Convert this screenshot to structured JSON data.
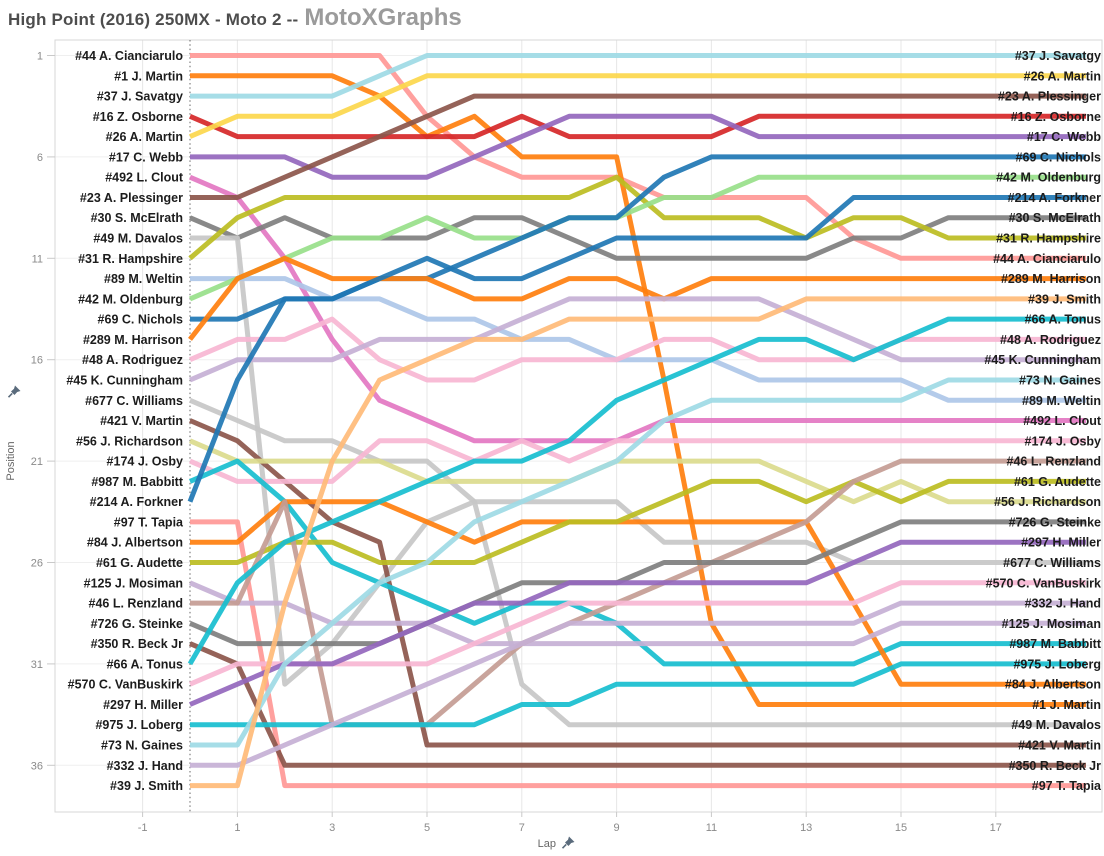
{
  "title": {
    "race": "High Point (2016) 250MX - Moto 2 --",
    "brand": "MotoXGraphs"
  },
  "axes": {
    "x_label": "Lap",
    "y_label": "Position",
    "x_ticks": [
      -1,
      1,
      3,
      5,
      7,
      9,
      11,
      13,
      15,
      17
    ],
    "y_ticks": [
      1,
      6,
      11,
      16,
      21,
      26,
      31,
      36
    ]
  },
  "chart_data": {
    "type": "line",
    "variant": "bump-chart",
    "title": "High Point (2016) 250MX - Moto 2",
    "xlabel": "Lap",
    "ylabel": "Position",
    "x_range": [
      0,
      17
    ],
    "y_range": [
      1,
      37
    ],
    "grid": "light",
    "laps": [
      0,
      1,
      2,
      3,
      4,
      5,
      6,
      7,
      8,
      9,
      10,
      11,
      12,
      13,
      14,
      15,
      16,
      17
    ],
    "series": [
      {
        "num": "#44",
        "name": "A. Cianciarulo",
        "label": "#44 A. Cianciarulo",
        "color": "#ff9896",
        "start": 1,
        "finish": 11,
        "positions": [
          1,
          1,
          1,
          1,
          1,
          4,
          6,
          7,
          7,
          7,
          8,
          8,
          8,
          8,
          10,
          11,
          11,
          11
        ]
      },
      {
        "num": "#1",
        "name": "J. Martin",
        "label": "#1 J. Martin",
        "color": "#ff7f0e",
        "start": 2,
        "finish": 33,
        "positions": [
          2,
          2,
          2,
          2,
          3,
          5,
          4,
          6,
          6,
          6,
          17,
          29,
          33,
          33,
          33,
          33,
          33,
          33
        ]
      },
      {
        "num": "#37",
        "name": "J. Savatgy",
        "label": "#37 J. Savatgy",
        "color": "#9edae5",
        "start": 3,
        "finish": 1,
        "positions": [
          3,
          3,
          3,
          3,
          2,
          1,
          1,
          1,
          1,
          1,
          1,
          1,
          1,
          1,
          1,
          1,
          1,
          1
        ]
      },
      {
        "num": "#16",
        "name": "Z. Osborne",
        "label": "#16 Z. Osborne",
        "color": "#d62728",
        "start": 4,
        "finish": 4,
        "positions": [
          4,
          5,
          5,
          5,
          5,
          5,
          5,
          4,
          5,
          5,
          5,
          5,
          4,
          4,
          4,
          4,
          4,
          4
        ]
      },
      {
        "num": "#26",
        "name": "A. Martin",
        "label": "#26 A. Martin",
        "color": "#fcd74c",
        "start": 5,
        "finish": 2,
        "positions": [
          5,
          4,
          4,
          4,
          3,
          2,
          2,
          2,
          2,
          2,
          2,
          2,
          2,
          2,
          2,
          2,
          2,
          2
        ]
      },
      {
        "num": "#17",
        "name": "C. Webb",
        "label": "#17 C. Webb",
        "color": "#9467bd",
        "start": 6,
        "finish": 5,
        "positions": [
          6,
          6,
          6,
          7,
          7,
          7,
          6,
          5,
          4,
          4,
          4,
          4,
          5,
          5,
          5,
          5,
          5,
          5
        ]
      },
      {
        "num": "#492",
        "name": "L. Clout",
        "label": "#492 L. Clout",
        "color": "#e377c2",
        "start": 7,
        "finish": 19,
        "positions": [
          7,
          8,
          11,
          15,
          18,
          19,
          20,
          20,
          20,
          20,
          19,
          19,
          19,
          19,
          19,
          19,
          19,
          19
        ]
      },
      {
        "num": "#23",
        "name": "A. Plessinger",
        "label": "#23 A. Plessinger",
        "color": "#8c564b",
        "start": 8,
        "finish": 3,
        "positions": [
          8,
          8,
          7,
          6,
          5,
          4,
          3,
          3,
          3,
          3,
          3,
          3,
          3,
          3,
          3,
          3,
          3,
          3
        ]
      },
      {
        "num": "#30",
        "name": "S. McElrath",
        "label": "#30 S. McElrath",
        "color": "#7f7f7f",
        "start": 9,
        "finish": 9,
        "positions": [
          9,
          10,
          9,
          10,
          10,
          10,
          9,
          9,
          10,
          11,
          11,
          11,
          11,
          11,
          10,
          10,
          9,
          9
        ]
      },
      {
        "num": "#49",
        "name": "M. Davalos",
        "label": "#49 M. Davalos",
        "color": "#c7c7c7",
        "start": 10,
        "finish": 34,
        "positions": [
          10,
          10,
          32,
          30,
          27,
          24,
          23,
          32,
          34,
          34,
          34,
          34,
          34,
          34,
          34,
          34,
          34,
          34
        ]
      },
      {
        "num": "#31",
        "name": "R. Hampshire",
        "label": "#31 R. Hampshire",
        "color": "#bcbd22",
        "start": 11,
        "finish": 10,
        "positions": [
          11,
          9,
          8,
          8,
          8,
          8,
          8,
          8,
          8,
          7,
          9,
          9,
          9,
          10,
          9,
          9,
          10,
          10
        ]
      },
      {
        "num": "#89",
        "name": "M. Weltin",
        "label": "#89 M. Weltin",
        "color": "#aec7e8",
        "start": 12,
        "finish": 18,
        "positions": [
          12,
          12,
          12,
          13,
          13,
          14,
          14,
          15,
          15,
          16,
          16,
          16,
          17,
          17,
          17,
          17,
          18,
          18
        ]
      },
      {
        "num": "#42",
        "name": "M. Oldenburg",
        "label": "#42 M. Oldenburg",
        "color": "#98df8a",
        "start": 13,
        "finish": 7,
        "positions": [
          13,
          12,
          11,
          10,
          10,
          9,
          10,
          10,
          9,
          9,
          8,
          8,
          7,
          7,
          7,
          7,
          7,
          7
        ]
      },
      {
        "num": "#69",
        "name": "C. Nichols",
        "label": "#69 C. Nichols",
        "color": "#1f77b4",
        "start": 14,
        "finish": 6,
        "positions": [
          14,
          14,
          13,
          13,
          12,
          12,
          11,
          10,
          9,
          9,
          7,
          6,
          6,
          6,
          6,
          6,
          6,
          6
        ]
      },
      {
        "num": "#289",
        "name": "M. Harrison",
        "label": "#289 M. Harrison",
        "color": "#ff7f0e",
        "start": 15,
        "finish": 12,
        "positions": [
          15,
          12,
          11,
          12,
          12,
          12,
          13,
          13,
          12,
          12,
          13,
          12,
          12,
          12,
          12,
          12,
          12,
          12
        ]
      },
      {
        "num": "#48",
        "name": "A. Rodriguez",
        "label": "#48 A. Rodriguez",
        "color": "#f7b6d2",
        "start": 16,
        "finish": 15,
        "positions": [
          16,
          15,
          15,
          14,
          16,
          17,
          17,
          16,
          16,
          16,
          15,
          15,
          16,
          16,
          16,
          15,
          15,
          15
        ]
      },
      {
        "num": "#45",
        "name": "K. Cunningham",
        "label": "#45 K. Cunningham",
        "color": "#c5b0d5",
        "start": 17,
        "finish": 16,
        "positions": [
          17,
          16,
          16,
          16,
          15,
          15,
          15,
          14,
          13,
          13,
          13,
          13,
          13,
          14,
          15,
          16,
          16,
          16
        ]
      },
      {
        "num": "#677",
        "name": "C. Williams",
        "label": "#677 C. Williams",
        "color": "#c7c7c7",
        "start": 18,
        "finish": 26,
        "positions": [
          18,
          19,
          20,
          20,
          21,
          21,
          23,
          23,
          23,
          23,
          25,
          25,
          25,
          25,
          26,
          26,
          26,
          26
        ]
      },
      {
        "num": "#421",
        "name": "V. Martin",
        "label": "#421 V. Martin",
        "color": "#8c564b",
        "start": 19,
        "finish": 35,
        "positions": [
          19,
          20,
          22,
          24,
          25,
          35,
          35,
          35,
          35,
          35,
          35,
          35,
          35,
          35,
          35,
          35,
          35,
          35
        ]
      },
      {
        "num": "#56",
        "name": "J. Richardson",
        "label": "#56 J. Richardson",
        "color": "#dbdb8d",
        "start": 20,
        "finish": 23,
        "positions": [
          20,
          21,
          21,
          21,
          21,
          22,
          22,
          22,
          22,
          21,
          21,
          21,
          21,
          22,
          23,
          22,
          23,
          23
        ]
      },
      {
        "num": "#174",
        "name": "J. Osby",
        "label": "#174 J. Osby",
        "color": "#f7b6d2",
        "start": 21,
        "finish": 20,
        "positions": [
          21,
          22,
          22,
          22,
          20,
          20,
          21,
          20,
          21,
          20,
          20,
          20,
          20,
          20,
          20,
          20,
          20,
          20
        ]
      },
      {
        "num": "#987",
        "name": "M. Babbitt",
        "label": "#987 M. Babbitt",
        "color": "#17becf",
        "start": 22,
        "finish": 30,
        "positions": [
          22,
          21,
          23,
          26,
          27,
          28,
          29,
          28,
          28,
          29,
          31,
          31,
          31,
          31,
          31,
          30,
          30,
          30
        ]
      },
      {
        "num": "#214",
        "name": "A. Forkner",
        "label": "#214 A. Forkner",
        "color": "#1f77b4",
        "start": 23,
        "finish": 8,
        "positions": [
          23,
          17,
          13,
          13,
          12,
          11,
          12,
          12,
          11,
          10,
          10,
          10,
          10,
          10,
          8,
          8,
          8,
          8
        ]
      },
      {
        "num": "#97",
        "name": "T. Tapia",
        "label": "#97 T. Tapia",
        "color": "#ff9896",
        "start": 24,
        "finish": 37,
        "positions": [
          24,
          24,
          37,
          37,
          37,
          37,
          37,
          37,
          37,
          37,
          37,
          37,
          37,
          37,
          37,
          37,
          37,
          37
        ]
      },
      {
        "num": "#84",
        "name": "J. Albertson",
        "label": "#84 J. Albertson",
        "color": "#ff7f0e",
        "start": 25,
        "finish": 32,
        "positions": [
          25,
          25,
          23,
          23,
          23,
          24,
          25,
          24,
          24,
          24,
          24,
          24,
          24,
          24,
          28,
          32,
          32,
          32
        ]
      },
      {
        "num": "#61",
        "name": "G. Audette",
        "label": "#61 G. Audette",
        "color": "#bcbd22",
        "start": 26,
        "finish": 22,
        "positions": [
          26,
          26,
          25,
          25,
          26,
          26,
          26,
          25,
          24,
          24,
          23,
          22,
          22,
          23,
          22,
          23,
          22,
          22
        ]
      },
      {
        "num": "#125",
        "name": "J. Mosiman",
        "label": "#125 J. Mosiman",
        "color": "#c5b0d5",
        "start": 27,
        "finish": 29,
        "positions": [
          27,
          28,
          28,
          29,
          29,
          29,
          30,
          30,
          30,
          30,
          30,
          30,
          30,
          30,
          30,
          29,
          29,
          29
        ]
      },
      {
        "num": "#46",
        "name": "L. Renzland",
        "label": "#46 L. Renzland",
        "color": "#c49c94",
        "start": 28,
        "finish": 21,
        "positions": [
          28,
          28,
          23,
          34,
          34,
          34,
          32,
          30,
          29,
          28,
          27,
          26,
          25,
          24,
          22,
          21,
          21,
          21
        ]
      },
      {
        "num": "#726",
        "name": "G. Steinke",
        "label": "#726 G. Steinke",
        "color": "#7f7f7f",
        "start": 29,
        "finish": 24,
        "positions": [
          29,
          30,
          30,
          30,
          30,
          29,
          28,
          27,
          27,
          27,
          26,
          26,
          26,
          26,
          25,
          24,
          24,
          24
        ]
      },
      {
        "num": "#350",
        "name": "R. Beck Jr",
        "label": "#350 R. Beck Jr",
        "color": "#8c564b",
        "start": 30,
        "finish": 36,
        "positions": [
          30,
          31,
          36,
          36,
          36,
          36,
          36,
          36,
          36,
          36,
          36,
          36,
          36,
          36,
          36,
          36,
          36,
          36
        ]
      },
      {
        "num": "#66",
        "name": "A. Tonus",
        "label": "#66 A. Tonus",
        "color": "#17becf",
        "start": 31,
        "finish": 14,
        "positions": [
          31,
          27,
          25,
          24,
          23,
          22,
          21,
          21,
          20,
          18,
          17,
          16,
          15,
          15,
          16,
          15,
          14,
          14
        ]
      },
      {
        "num": "#570",
        "name": "C. VanBuskirk",
        "label": "#570 C. VanBuskirk",
        "color": "#f7b6d2",
        "start": 32,
        "finish": 27,
        "positions": [
          32,
          31,
          31,
          31,
          31,
          31,
          30,
          29,
          28,
          28,
          28,
          28,
          28,
          28,
          28,
          27,
          27,
          27
        ]
      },
      {
        "num": "#297",
        "name": "H. Miller",
        "label": "#297 H. Miller",
        "color": "#9467bd",
        "start": 33,
        "finish": 25,
        "positions": [
          33,
          32,
          31,
          31,
          30,
          29,
          28,
          28,
          27,
          27,
          27,
          27,
          27,
          27,
          26,
          25,
          25,
          25
        ]
      },
      {
        "num": "#975",
        "name": "J. Loberg",
        "label": "#975 J. Loberg",
        "color": "#17becf",
        "start": 34,
        "finish": 31,
        "positions": [
          34,
          34,
          34,
          34,
          34,
          34,
          34,
          33,
          33,
          32,
          32,
          32,
          32,
          32,
          32,
          31,
          31,
          31
        ]
      },
      {
        "num": "#73",
        "name": "N. Gaines",
        "label": "#73 N. Gaines",
        "color": "#9edae5",
        "start": 35,
        "finish": 17,
        "positions": [
          35,
          35,
          31,
          29,
          27,
          26,
          24,
          23,
          22,
          21,
          19,
          18,
          18,
          18,
          18,
          18,
          17,
          17
        ]
      },
      {
        "num": "#332",
        "name": "J. Hand",
        "label": "#332 J. Hand",
        "color": "#c5b0d5",
        "start": 36,
        "finish": 28,
        "positions": [
          36,
          36,
          35,
          34,
          33,
          32,
          31,
          30,
          29,
          29,
          29,
          29,
          29,
          29,
          29,
          28,
          28,
          28
        ]
      },
      {
        "num": "#39",
        "name": "J. Smith",
        "label": "#39 J. Smith",
        "color": "#ffbb78",
        "start": 37,
        "finish": 13,
        "positions": [
          37,
          37,
          28,
          21,
          17,
          16,
          15,
          15,
          14,
          14,
          14,
          14,
          14,
          13,
          13,
          13,
          13,
          13
        ]
      }
    ]
  }
}
